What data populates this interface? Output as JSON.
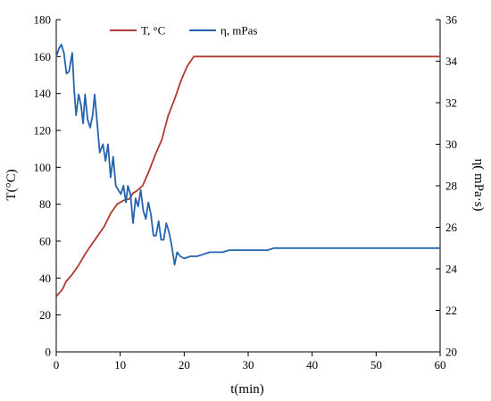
{
  "chart_data": {
    "type": "line",
    "xlabel": "t(min)",
    "ylabel_left": "T(°C)",
    "ylabel_right": "η( mPa·s)",
    "xlim": [
      0,
      60
    ],
    "ylim_left": [
      0,
      180
    ],
    "ylim_right": [
      20,
      36
    ],
    "x_ticks": [
      0,
      10,
      20,
      30,
      40,
      50,
      60
    ],
    "y_ticks_left": [
      0,
      20,
      40,
      60,
      80,
      100,
      120,
      140,
      160,
      180
    ],
    "y_ticks_right": [
      20,
      22,
      24,
      26,
      28,
      30,
      32,
      34,
      36
    ],
    "grid": false,
    "legend_position": "top",
    "series": [
      {
        "name": "T, °C",
        "axis": "left",
        "color": "#b03a2e",
        "points": [
          [
            0,
            30
          ],
          [
            1,
            34
          ],
          [
            1.5,
            38
          ],
          [
            2.5,
            42
          ],
          [
            3.5,
            47
          ],
          [
            4.5,
            53
          ],
          [
            5.5,
            58
          ],
          [
            6.5,
            63
          ],
          [
            7.5,
            68
          ],
          [
            8.5,
            75
          ],
          [
            9.5,
            80
          ],
          [
            10.5,
            82
          ],
          [
            11.5,
            83
          ],
          [
            12,
            86
          ],
          [
            12.5,
            87
          ],
          [
            13.5,
            90
          ],
          [
            14.5,
            98
          ],
          [
            15.5,
            107
          ],
          [
            16.5,
            115
          ],
          [
            17.5,
            128
          ],
          [
            18.5,
            137
          ],
          [
            19.5,
            147
          ],
          [
            20.5,
            155
          ],
          [
            21.5,
            160
          ],
          [
            60,
            160
          ]
        ]
      },
      {
        "name": "η, mPas",
        "axis": "right",
        "color": "#2563b0",
        "points": [
          [
            0,
            34.2
          ],
          [
            0.4,
            34.6
          ],
          [
            0.8,
            34.8
          ],
          [
            1.2,
            34.4
          ],
          [
            1.6,
            33.4
          ],
          [
            2.0,
            33.5
          ],
          [
            2.5,
            34.4
          ],
          [
            2.8,
            32.6
          ],
          [
            3.1,
            31.4
          ],
          [
            3.5,
            32.4
          ],
          [
            3.9,
            31.8
          ],
          [
            4.2,
            31.0
          ],
          [
            4.5,
            32.4
          ],
          [
            4.9,
            31.2
          ],
          [
            5.3,
            30.8
          ],
          [
            5.7,
            31.4
          ],
          [
            6.0,
            32.4
          ],
          [
            6.4,
            31.0
          ],
          [
            6.8,
            29.6
          ],
          [
            7.3,
            30.0
          ],
          [
            7.7,
            29.2
          ],
          [
            8.1,
            30.0
          ],
          [
            8.5,
            28.4
          ],
          [
            8.9,
            29.4
          ],
          [
            9.3,
            28.0
          ],
          [
            9.7,
            27.8
          ],
          [
            10.1,
            27.6
          ],
          [
            10.5,
            28.0
          ],
          [
            10.9,
            27.2
          ],
          [
            11.2,
            28.0
          ],
          [
            11.6,
            27.6
          ],
          [
            12.0,
            26.2
          ],
          [
            12.4,
            27.4
          ],
          [
            12.8,
            27.0
          ],
          [
            13.2,
            27.8
          ],
          [
            13.6,
            26.8
          ],
          [
            14.0,
            26.4
          ],
          [
            14.4,
            27.2
          ],
          [
            14.8,
            26.6
          ],
          [
            15.2,
            25.6
          ],
          [
            15.6,
            25.6
          ],
          [
            16.0,
            26.3
          ],
          [
            16.4,
            25.4
          ],
          [
            16.8,
            25.4
          ],
          [
            17.2,
            26.2
          ],
          [
            17.6,
            25.8
          ],
          [
            18.0,
            25.2
          ],
          [
            18.5,
            24.2
          ],
          [
            18.9,
            24.8
          ],
          [
            19.4,
            24.6
          ],
          [
            20.0,
            24.5
          ],
          [
            21.0,
            24.6
          ],
          [
            22.0,
            24.6
          ],
          [
            23.0,
            24.7
          ],
          [
            24.0,
            24.8
          ],
          [
            26.0,
            24.8
          ],
          [
            27.0,
            24.9
          ],
          [
            30.0,
            24.9
          ],
          [
            33.0,
            24.9
          ],
          [
            34.0,
            25.0
          ],
          [
            60,
            25.0
          ]
        ]
      }
    ]
  }
}
